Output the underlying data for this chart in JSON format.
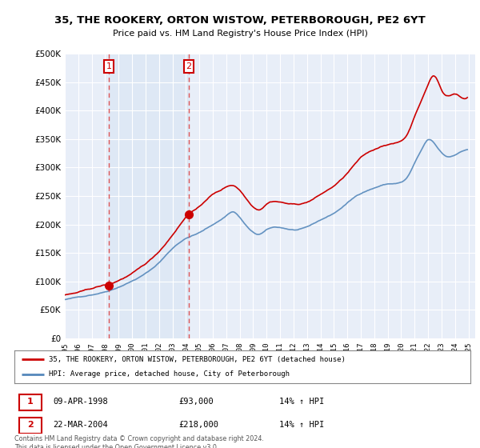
{
  "title": "35, THE ROOKERY, ORTON WISTOW, PETERBOROUGH, PE2 6YT",
  "subtitle": "Price paid vs. HM Land Registry's House Price Index (HPI)",
  "legend_line1": "35, THE ROOKERY, ORTON WISTOW, PETERBOROUGH, PE2 6YT (detached house)",
  "legend_line2": "HPI: Average price, detached house, City of Peterborough",
  "transaction1_date": "09-APR-1998",
  "transaction1_price": "£93,000",
  "transaction1_hpi": "14% ↑ HPI",
  "transaction2_date": "22-MAR-2004",
  "transaction2_price": "£218,000",
  "transaction2_hpi": "14% ↑ HPI",
  "footer": "Contains HM Land Registry data © Crown copyright and database right 2024.\nThis data is licensed under the Open Government Licence v3.0.",
  "transaction1_x": 1998.27,
  "transaction1_y": 93000,
  "transaction2_x": 2004.22,
  "transaction2_y": 218000,
  "red_color": "#cc0000",
  "blue_color": "#5588bb",
  "blue_fill_color": "#dde8f5",
  "dashed_color": "#dd4444",
  "background_color": "#e8eef8",
  "ylim": [
    0,
    500000
  ],
  "xlim": [
    1995.0,
    2025.5
  ]
}
